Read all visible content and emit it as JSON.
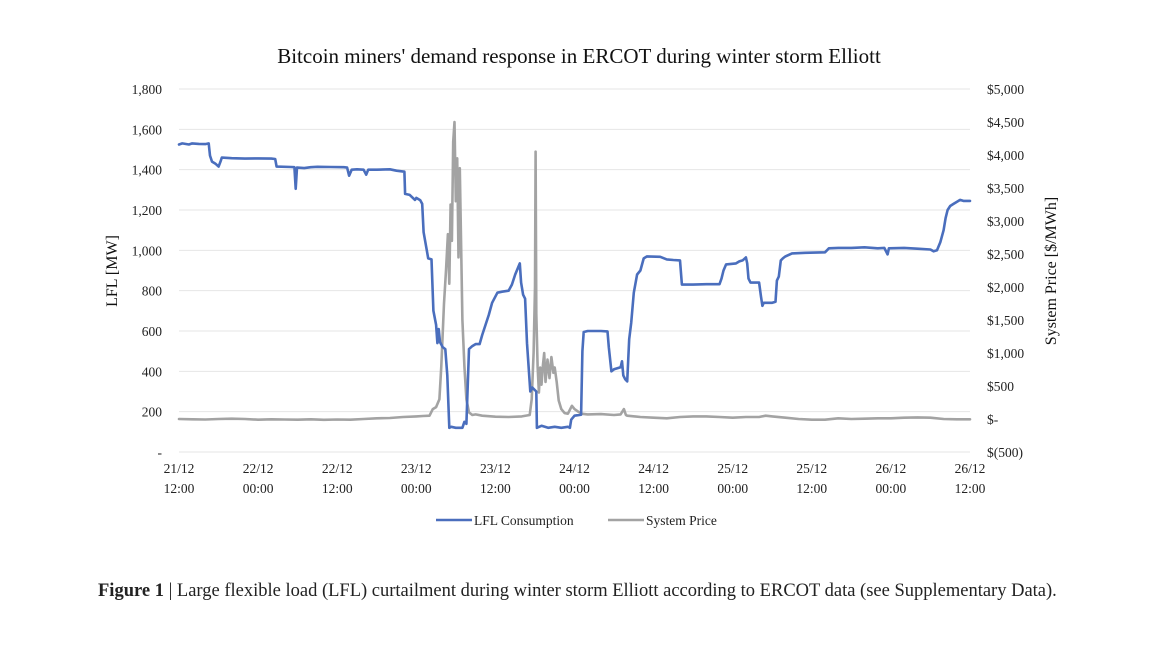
{
  "chart_data": {
    "type": "line",
    "title": "Bitcoin miners' demand response in ERCOT during winter storm Elliott",
    "ylabel": "LFL [MW]",
    "y2label": "System Price [$/MWh]",
    "ylim": [
      0,
      1800
    ],
    "y2lim": [
      -500,
      5000
    ],
    "xlim": [
      0,
      120
    ],
    "x_ticks": [
      {
        "x": 0,
        "line1": "21/12",
        "line2": "12:00"
      },
      {
        "x": 12,
        "line1": "22/12",
        "line2": "00:00"
      },
      {
        "x": 24,
        "line1": "22/12",
        "line2": "12:00"
      },
      {
        "x": 36,
        "line1": "23/12",
        "line2": "00:00"
      },
      {
        "x": 48,
        "line1": "23/12",
        "line2": "12:00"
      },
      {
        "x": 60,
        "line1": "24/12",
        "line2": "00:00"
      },
      {
        "x": 72,
        "line1": "24/12",
        "line2": "12:00"
      },
      {
        "x": 84,
        "line1": "25/12",
        "line2": "00:00"
      },
      {
        "x": 96,
        "line1": "25/12",
        "line2": "12:00"
      },
      {
        "x": 108,
        "line1": "26/12",
        "line2": "00:00"
      },
      {
        "x": 120,
        "line1": "26/12",
        "line2": "12:00"
      }
    ],
    "y_ticks": [
      {
        "v": 0,
        "label": "-"
      },
      {
        "v": 200,
        "label": "200"
      },
      {
        "v": 400,
        "label": "400"
      },
      {
        "v": 600,
        "label": "600"
      },
      {
        "v": 800,
        "label": "800"
      },
      {
        "v": 1000,
        "label": "1,000"
      },
      {
        "v": 1200,
        "label": "1,200"
      },
      {
        "v": 1400,
        "label": "1,400"
      },
      {
        "v": 1600,
        "label": "1,600"
      },
      {
        "v": 1800,
        "label": "1,800"
      }
    ],
    "y2_ticks": [
      {
        "v": -500,
        "label": "$(500)"
      },
      {
        "v": 0,
        "label": "$-"
      },
      {
        "v": 500,
        "label": "$500"
      },
      {
        "v": 1000,
        "label": "$1,000"
      },
      {
        "v": 1500,
        "label": "$1,500"
      },
      {
        "v": 2000,
        "label": "$2,000"
      },
      {
        "v": 2500,
        "label": "$2,500"
      },
      {
        "v": 3000,
        "label": "$3,000"
      },
      {
        "v": 3500,
        "label": "$3,500"
      },
      {
        "v": 4000,
        "label": "$4,000"
      },
      {
        "v": 4500,
        "label": "$4,500"
      },
      {
        "v": 5000,
        "label": "$5,000"
      }
    ],
    "grid": true,
    "legend_position": "bottom",
    "series": [
      {
        "name": "LFL Consumption",
        "axis": "left",
        "color": "#4a6ebd",
        "points": [
          [
            0,
            1525
          ],
          [
            0.5,
            1530
          ],
          [
            1.5,
            1525
          ],
          [
            2,
            1530
          ],
          [
            3,
            1528
          ],
          [
            4,
            1527
          ],
          [
            4.5,
            1530
          ],
          [
            4.7,
            1470
          ],
          [
            5,
            1440
          ],
          [
            5.5,
            1430
          ],
          [
            6,
            1415
          ],
          [
            6.3,
            1440
          ],
          [
            6.5,
            1460
          ],
          [
            8,
            1457
          ],
          [
            10,
            1455
          ],
          [
            12,
            1456
          ],
          [
            14,
            1455
          ],
          [
            14.6,
            1453
          ],
          [
            14.8,
            1415
          ],
          [
            17,
            1413
          ],
          [
            17.5,
            1412
          ],
          [
            17.7,
            1305
          ],
          [
            17.9,
            1410
          ],
          [
            19,
            1408
          ],
          [
            20,
            1412
          ],
          [
            21,
            1414
          ],
          [
            23,
            1413
          ],
          [
            25,
            1412
          ],
          [
            25.5,
            1410
          ],
          [
            25.8,
            1370
          ],
          [
            26.2,
            1400
          ],
          [
            27,
            1402
          ],
          [
            28,
            1400
          ],
          [
            28.4,
            1375
          ],
          [
            28.7,
            1400
          ],
          [
            30,
            1400
          ],
          [
            32,
            1402
          ],
          [
            33,
            1395
          ],
          [
            34.2,
            1390
          ],
          [
            34.3,
            1280
          ],
          [
            35,
            1275
          ],
          [
            35.8,
            1250
          ],
          [
            36,
            1260
          ],
          [
            36.6,
            1248
          ],
          [
            36.9,
            1230
          ],
          [
            37.1,
            1090
          ],
          [
            37.6,
            1000
          ],
          [
            37.8,
            960
          ],
          [
            38.3,
            955
          ],
          [
            38.6,
            700
          ],
          [
            39,
            630
          ],
          [
            39.2,
            540
          ],
          [
            39.4,
            610
          ],
          [
            39.6,
            545
          ],
          [
            40,
            520
          ],
          [
            40.4,
            510
          ],
          [
            40.7,
            380
          ],
          [
            41,
            120
          ],
          [
            41.3,
            125
          ],
          [
            42,
            120
          ],
          [
            43,
            120
          ],
          [
            43.3,
            150
          ],
          [
            43.6,
            140
          ],
          [
            44,
            510
          ],
          [
            44.5,
            525
          ],
          [
            45,
            535
          ],
          [
            45.6,
            535
          ],
          [
            46,
            580
          ],
          [
            47,
            680
          ],
          [
            47.5,
            740
          ],
          [
            48.3,
            790
          ],
          [
            49,
            795
          ],
          [
            50,
            800
          ],
          [
            50.5,
            830
          ],
          [
            51,
            880
          ],
          [
            51.5,
            920
          ],
          [
            51.7,
            935
          ],
          [
            51.9,
            840
          ],
          [
            52.2,
            780
          ],
          [
            52.5,
            760
          ],
          [
            52.8,
            540
          ],
          [
            53.3,
            300
          ],
          [
            53.6,
            320
          ],
          [
            54.2,
            300
          ],
          [
            54.3,
            120
          ],
          [
            55,
            130
          ],
          [
            56,
            120
          ],
          [
            57,
            125
          ],
          [
            58,
            120
          ],
          [
            59,
            125
          ],
          [
            59.3,
            120
          ],
          [
            59.5,
            160
          ],
          [
            60,
            180
          ],
          [
            61,
            185
          ],
          [
            61.2,
            500
          ],
          [
            61.4,
            595
          ],
          [
            62,
            600
          ],
          [
            64,
            600
          ],
          [
            65,
            598
          ],
          [
            65.2,
            520
          ],
          [
            65.6,
            400
          ],
          [
            66,
            410
          ],
          [
            67,
            420
          ],
          [
            67.2,
            450
          ],
          [
            67.4,
            380
          ],
          [
            67.7,
            360
          ],
          [
            68,
            350
          ],
          [
            68.3,
            560
          ],
          [
            68.6,
            640
          ],
          [
            69,
            790
          ],
          [
            69.5,
            880
          ],
          [
            70,
            900
          ],
          [
            70.5,
            960
          ],
          [
            71,
            970
          ],
          [
            73,
            968
          ],
          [
            74,
            955
          ],
          [
            75,
            952
          ],
          [
            76,
            950
          ],
          [
            76.3,
            830
          ],
          [
            78,
            830
          ],
          [
            80,
            832
          ],
          [
            82,
            832
          ],
          [
            82.3,
            860
          ],
          [
            82.6,
            900
          ],
          [
            83,
            930
          ],
          [
            84.5,
            935
          ],
          [
            85,
            945
          ],
          [
            85.5,
            950
          ],
          [
            86,
            965
          ],
          [
            86.2,
            935
          ],
          [
            86.4,
            860
          ],
          [
            86.7,
            840
          ],
          [
            88,
            840
          ],
          [
            88.3,
            770
          ],
          [
            88.5,
            725
          ],
          [
            88.7,
            740
          ],
          [
            90,
            740
          ],
          [
            90.5,
            745
          ],
          [
            90.7,
            850
          ],
          [
            91,
            870
          ],
          [
            91.3,
            950
          ],
          [
            91.6,
            960
          ],
          [
            92,
            970
          ],
          [
            93,
            985
          ],
          [
            95,
            988
          ],
          [
            98,
            990
          ],
          [
            98.6,
            1010
          ],
          [
            100,
            1012
          ],
          [
            102,
            1012
          ],
          [
            104,
            1015
          ],
          [
            106,
            1010
          ],
          [
            107,
            1012
          ],
          [
            107.5,
            980
          ],
          [
            107.7,
            1010
          ],
          [
            110,
            1012
          ],
          [
            112,
            1008
          ],
          [
            114,
            1004
          ],
          [
            114.5,
            995
          ],
          [
            115,
            1000
          ],
          [
            115.5,
            1040
          ],
          [
            116,
            1100
          ],
          [
            116.3,
            1160
          ],
          [
            116.6,
            1200
          ],
          [
            117,
            1220
          ],
          [
            117.5,
            1230
          ],
          [
            118,
            1240
          ],
          [
            118.5,
            1250
          ],
          [
            119,
            1245
          ],
          [
            120,
            1245
          ]
        ]
      },
      {
        "name": "System Price",
        "axis": "right",
        "color": "#a3a3a3",
        "points": [
          [
            0,
            0
          ],
          [
            2,
            -5
          ],
          [
            4,
            -8
          ],
          [
            6,
            0
          ],
          [
            8,
            5
          ],
          [
            10,
            0
          ],
          [
            12,
            -10
          ],
          [
            14,
            -5
          ],
          [
            16,
            -8
          ],
          [
            18,
            -10
          ],
          [
            20,
            -5
          ],
          [
            22,
            -12
          ],
          [
            24,
            -8
          ],
          [
            26,
            -10
          ],
          [
            28,
            0
          ],
          [
            30,
            10
          ],
          [
            32,
            15
          ],
          [
            34,
            30
          ],
          [
            36,
            40
          ],
          [
            37,
            45
          ],
          [
            38,
            50
          ],
          [
            38.5,
            150
          ],
          [
            39,
            180
          ],
          [
            39.5,
            300
          ],
          [
            39.8,
            800
          ],
          [
            40.2,
            1750
          ],
          [
            40.5,
            2250
          ],
          [
            40.8,
            2800
          ],
          [
            41,
            2050
          ],
          [
            41.2,
            3250
          ],
          [
            41.4,
            2700
          ],
          [
            41.6,
            4200
          ],
          [
            41.8,
            4500
          ],
          [
            42,
            3300
          ],
          [
            42.2,
            3950
          ],
          [
            42.4,
            2450
          ],
          [
            42.6,
            3800
          ],
          [
            42.8,
            2650
          ],
          [
            43,
            1500
          ],
          [
            43.3,
            800
          ],
          [
            43.6,
            300
          ],
          [
            44,
            100
          ],
          [
            44.5,
            60
          ],
          [
            45,
            70
          ],
          [
            46,
            50
          ],
          [
            48,
            35
          ],
          [
            50,
            30
          ],
          [
            52,
            40
          ],
          [
            53.2,
            60
          ],
          [
            53.5,
            300
          ],
          [
            53.8,
            1000
          ],
          [
            54,
            2000
          ],
          [
            54.1,
            4050
          ],
          [
            54.2,
            1600
          ],
          [
            54.4,
            800
          ],
          [
            54.6,
            400
          ],
          [
            54.8,
            780
          ],
          [
            55,
            520
          ],
          [
            55.2,
            810
          ],
          [
            55.4,
            1000
          ],
          [
            55.6,
            560
          ],
          [
            55.9,
            900
          ],
          [
            56.2,
            620
          ],
          [
            56.5,
            940
          ],
          [
            56.8,
            700
          ],
          [
            57,
            780
          ],
          [
            57.3,
            560
          ],
          [
            57.6,
            280
          ],
          [
            58,
            150
          ],
          [
            58.5,
            90
          ],
          [
            59,
            80
          ],
          [
            59.6,
            200
          ],
          [
            60,
            150
          ],
          [
            61,
            80
          ],
          [
            62,
            70
          ],
          [
            64,
            75
          ],
          [
            66,
            60
          ],
          [
            67,
            70
          ],
          [
            67.5,
            150
          ],
          [
            67.8,
            60
          ],
          [
            68,
            50
          ],
          [
            70,
            30
          ],
          [
            72,
            20
          ],
          [
            74,
            10
          ],
          [
            76,
            30
          ],
          [
            78,
            40
          ],
          [
            80,
            40
          ],
          [
            82,
            30
          ],
          [
            84,
            20
          ],
          [
            86,
            30
          ],
          [
            88,
            30
          ],
          [
            89,
            50
          ],
          [
            90,
            40
          ],
          [
            92,
            20
          ],
          [
            94,
            0
          ],
          [
            96,
            -10
          ],
          [
            98,
            -10
          ],
          [
            100,
            10
          ],
          [
            102,
            0
          ],
          [
            104,
            5
          ],
          [
            106,
            10
          ],
          [
            108,
            10
          ],
          [
            110,
            20
          ],
          [
            112,
            25
          ],
          [
            114,
            20
          ],
          [
            116,
            0
          ],
          [
            118,
            -5
          ],
          [
            120,
            -5
          ]
        ]
      }
    ]
  },
  "caption": {
    "label": "Figure 1",
    "separator": " | ",
    "text": "Large flexible load (LFL) curtailment during winter storm Elliott according to ERCOT data (see Supplementary Data)."
  }
}
